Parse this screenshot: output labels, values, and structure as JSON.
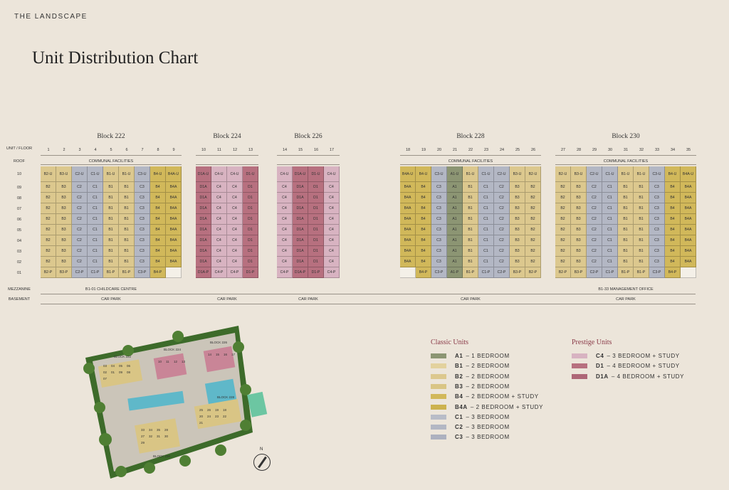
{
  "header": {
    "brand": "THE LANDSCAPE",
    "title": "Unit Distribution Chart"
  },
  "row_labels": {
    "unit_floor": "UNIT / FLOOR",
    "roof": "ROOF",
    "mezzanine": "MEZZANINE",
    "basement": "BASEMENT"
  },
  "floors": [
    "10",
    "09",
    "08",
    "07",
    "06",
    "05",
    "04",
    "03",
    "02",
    "01"
  ],
  "colors": {
    "A": "#8c9573",
    "B": "#dcc88e",
    "B4": "#d1b85a",
    "C": "#b3b7c4",
    "C4": "#d8b3c1",
    "D": "#b7707f",
    "empty": "#f4f0e8"
  },
  "blocks": [
    {
      "name": "Block 222",
      "roof": "COMMUNAL FACILITIES",
      "mezzanine": "B1-01 CHILDCARE CENTRE",
      "basement": "CAR PARK",
      "units": [
        "1",
        "2",
        "3",
        "4",
        "5",
        "6",
        "7",
        "8",
        "9"
      ],
      "rows": [
        [
          "B2-U",
          "B3-U",
          "C2-U",
          "C1-U",
          "B1-U",
          "B1-U",
          "C3-U",
          "B4-U",
          "B4A-U"
        ],
        [
          "B2",
          "B3",
          "C2",
          "C1",
          "B1",
          "B1",
          "C3",
          "B4",
          "B4A"
        ],
        [
          "B2",
          "B3",
          "C2",
          "C1",
          "B1",
          "B1",
          "C3",
          "B4",
          "B4A"
        ],
        [
          "B2",
          "B3",
          "C2",
          "C1",
          "B1",
          "B1",
          "C3",
          "B4",
          "B4A"
        ],
        [
          "B2",
          "B3",
          "C2",
          "C1",
          "B1",
          "B1",
          "C3",
          "B4",
          "B4A"
        ],
        [
          "B2",
          "B3",
          "C2",
          "C1",
          "B1",
          "B1",
          "C3",
          "B4",
          "B4A"
        ],
        [
          "B2",
          "B3",
          "C2",
          "C1",
          "B1",
          "B1",
          "C3",
          "B4",
          "B4A"
        ],
        [
          "B2",
          "B3",
          "C2",
          "C1",
          "B1",
          "B1",
          "C3",
          "B4",
          "B4A"
        ],
        [
          "B2",
          "B3",
          "C2",
          "C1",
          "B1",
          "B1",
          "C3",
          "B4",
          "B4A"
        ],
        [
          "B2-P",
          "B3-P",
          "C2-P",
          "C1-P",
          "B1-P",
          "B1-P",
          "C3-P",
          "B4-P",
          ""
        ]
      ]
    },
    {
      "name": "Block 224",
      "roof": "",
      "mezzanine": "",
      "basement": "CAR PARK",
      "units": [
        "10",
        "11",
        "12",
        "13"
      ],
      "rows": [
        [
          "D1A-U",
          "C4-U",
          "C4-U",
          "D1-U"
        ],
        [
          "D1A",
          "C4",
          "C4",
          "D1"
        ],
        [
          "D1A",
          "C4",
          "C4",
          "D1"
        ],
        [
          "D1A",
          "C4",
          "C4",
          "D1"
        ],
        [
          "D1A",
          "C4",
          "C4",
          "D1"
        ],
        [
          "D1A",
          "C4",
          "C4",
          "D1"
        ],
        [
          "D1A",
          "C4",
          "C4",
          "D1"
        ],
        [
          "D1A",
          "C4",
          "C4",
          "D1"
        ],
        [
          "D1A",
          "C4",
          "C4",
          "D1"
        ],
        [
          "D1A-P",
          "C4-P",
          "C4-P",
          "D1-P"
        ]
      ]
    },
    {
      "name": "Block 226",
      "roof": "",
      "mezzanine": "",
      "basement": "CAR PARK",
      "units": [
        "14",
        "15",
        "16",
        "17"
      ],
      "rows": [
        [
          "C4-U",
          "D1A-U",
          "D1-U",
          "C4-U"
        ],
        [
          "C4",
          "D1A",
          "D1",
          "C4"
        ],
        [
          "C4",
          "D1A",
          "D1",
          "C4"
        ],
        [
          "C4",
          "D1A",
          "D1",
          "C4"
        ],
        [
          "C4",
          "D1A",
          "D1",
          "C4"
        ],
        [
          "C4",
          "D1A",
          "D1",
          "C4"
        ],
        [
          "C4",
          "D1A",
          "D1",
          "C4"
        ],
        [
          "C4",
          "D1A",
          "D1",
          "C4"
        ],
        [
          "C4",
          "D1A",
          "D1",
          "C4"
        ],
        [
          "C4-P",
          "D1A-P",
          "D1-P",
          "C4-P"
        ]
      ]
    },
    {
      "name": "Block 228",
      "roof": "COMMUNAL FACILITIES",
      "mezzanine": "",
      "basement": "CAR PARK",
      "units": [
        "18",
        "19",
        "20",
        "21",
        "22",
        "23",
        "24",
        "25",
        "26"
      ],
      "rows": [
        [
          "B4A-U",
          "B4-U",
          "C3-U",
          "A1-U",
          "B1-U",
          "C1-U",
          "C2-U",
          "B3-U",
          "B2-U"
        ],
        [
          "B4A",
          "B4",
          "C3",
          "A1",
          "B1",
          "C1",
          "C2",
          "B3",
          "B2"
        ],
        [
          "B4A",
          "B4",
          "C3",
          "A1",
          "B1",
          "C1",
          "C2",
          "B3",
          "B2"
        ],
        [
          "B4A",
          "B4",
          "C3",
          "A1",
          "B1",
          "C1",
          "C2",
          "B3",
          "B2"
        ],
        [
          "B4A",
          "B4",
          "C3",
          "A1",
          "B1",
          "C1",
          "C2",
          "B3",
          "B2"
        ],
        [
          "B4A",
          "B4",
          "C3",
          "A1",
          "B1",
          "C1",
          "C2",
          "B3",
          "B2"
        ],
        [
          "B4A",
          "B4",
          "C3",
          "A1",
          "B1",
          "C1",
          "C2",
          "B3",
          "B2"
        ],
        [
          "B4A",
          "B4",
          "C3",
          "A1",
          "B1",
          "C1",
          "C2",
          "B3",
          "B2"
        ],
        [
          "B4A",
          "B4",
          "C3",
          "A1",
          "B1",
          "C1",
          "C2",
          "B3",
          "B2"
        ],
        [
          "",
          "B4-P",
          "C3-P",
          "A1-P",
          "B1-P",
          "C1-P",
          "C2-P",
          "B3-P",
          "B2-P"
        ]
      ]
    },
    {
      "name": "Block 230",
      "roof": "COMMUNAL FACILITIES",
      "mezzanine": "B1-33 MANAGEMENT OFFICE",
      "basement": "CAR PARK",
      "units": [
        "27",
        "28",
        "29",
        "30",
        "31",
        "32",
        "33",
        "34",
        "35"
      ],
      "rows": [
        [
          "B2-U",
          "B3-U",
          "C2-U",
          "C1-U",
          "B1-U",
          "B1-U",
          "C3-U",
          "B4-U",
          "B4A-U"
        ],
        [
          "B2",
          "B3",
          "C2",
          "C1",
          "B1",
          "B1",
          "C3",
          "B4",
          "B4A"
        ],
        [
          "B2",
          "B3",
          "C2",
          "C1",
          "B1",
          "B1",
          "C3",
          "B4",
          "B4A"
        ],
        [
          "B2",
          "B3",
          "C2",
          "C1",
          "B1",
          "B1",
          "C3",
          "B4",
          "B4A"
        ],
        [
          "B2",
          "B3",
          "C2",
          "C1",
          "B1",
          "B1",
          "C3",
          "B4",
          "B4A"
        ],
        [
          "B2",
          "B3",
          "C2",
          "C1",
          "B1",
          "B1",
          "C3",
          "B4",
          "B4A"
        ],
        [
          "B2",
          "B3",
          "C2",
          "C1",
          "B1",
          "B1",
          "C3",
          "B4",
          "B4A"
        ],
        [
          "B2",
          "B3",
          "C2",
          "C1",
          "B1",
          "B1",
          "C3",
          "B4",
          "B4A"
        ],
        [
          "B2",
          "B3",
          "C2",
          "C1",
          "B1",
          "B1",
          "C3",
          "B4",
          "B4A"
        ],
        [
          "B2-P",
          "B3-P",
          "C2-P",
          "C1-P",
          "B1-P",
          "B1-P",
          "C3-P",
          "B4-P",
          ""
        ]
      ]
    }
  ],
  "legend": {
    "classic_title": "Classic Units",
    "prestige_title": "Prestige Units",
    "classic": [
      {
        "code": "A1",
        "desc": "– 1 BEDROOM",
        "color": "#8c9573"
      },
      {
        "code": "B1",
        "desc": "– 2 BEDROOM",
        "color": "#e3d29e"
      },
      {
        "code": "B2",
        "desc": "– 2 BEDROOM",
        "color": "#dcc88e"
      },
      {
        "code": "B3",
        "desc": "– 2 BEDROOM",
        "color": "#d9c585"
      },
      {
        "code": "B4",
        "desc": "– 2 BEDROOM + STUDY",
        "color": "#d1b85a"
      },
      {
        "code": "B4A",
        "desc": "– 2 BEDROOM + STUDY",
        "color": "#ccb24e"
      },
      {
        "code": "C1",
        "desc": "– 3 BEDROOM",
        "color": "#b8bcc8"
      },
      {
        "code": "C2",
        "desc": "– 3 BEDROOM",
        "color": "#b3b7c4"
      },
      {
        "code": "C3",
        "desc": "– 3 BEDROOM",
        "color": "#adb1bf"
      }
    ],
    "prestige": [
      {
        "code": "C4",
        "desc": "– 3 BEDROOM + STUDY",
        "color": "#d8b3c1"
      },
      {
        "code": "D1",
        "desc": "– 4 BEDROOM + STUDY",
        "color": "#b7707f"
      },
      {
        "code": "D1A",
        "desc": "– 4 BEDROOM + STUDY",
        "color": "#ae6677"
      }
    ]
  },
  "site_plan": {
    "labels": [
      "BLOCK 222",
      "BLOCK 224",
      "BLOCK 226",
      "BLOCK 228",
      "BLOCK 230"
    ],
    "units_222": [
      "03",
      "04",
      "05",
      "06",
      "02",
      "01",
      "09",
      "08",
      "07"
    ],
    "units_224": [
      "10",
      "11",
      "12",
      "13"
    ],
    "units_226": [
      "14",
      "15",
      "16",
      "17"
    ],
    "units_228": [
      "25",
      "26",
      "19",
      "18",
      "20",
      "24",
      "23",
      "22",
      "21"
    ],
    "units_230": [
      "33",
      "34",
      "35",
      "28",
      "27",
      "32",
      "31",
      "30",
      "29"
    ],
    "compass": "N"
  }
}
